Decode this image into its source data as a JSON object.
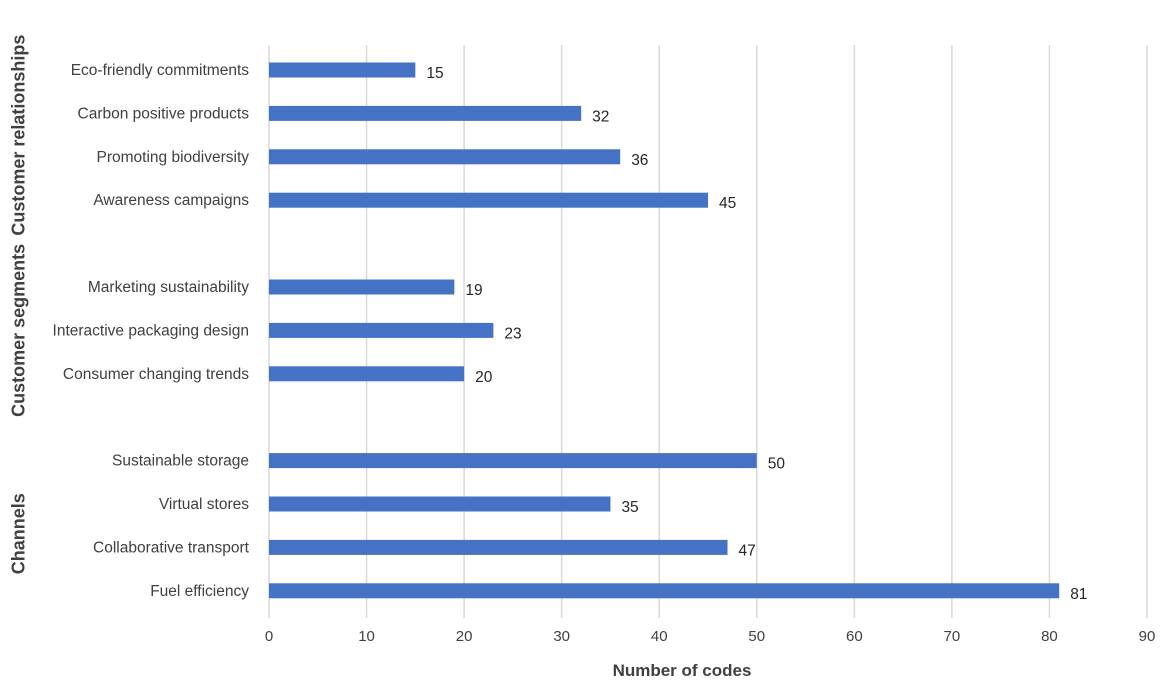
{
  "chart_data": {
    "type": "bar",
    "orientation": "horizontal",
    "xlabel": "Number of codes",
    "xlim": [
      0,
      90
    ],
    "xticks": [
      0,
      10,
      20,
      30,
      40,
      50,
      60,
      70,
      80,
      90
    ],
    "grid": true,
    "bar_color": "#4472C4",
    "groups": [
      {
        "name": "Customer relationships",
        "categories": [
          "Eco-friendly commitments",
          "Carbon positive products",
          "Promoting biodiversity",
          "Awareness campaigns"
        ],
        "values": [
          15,
          32,
          36,
          45
        ]
      },
      {
        "name": "Customer segments",
        "categories": [
          "Marketing sustainability",
          "Interactive packaging design",
          "Consumer changing trends"
        ],
        "values": [
          19,
          23,
          20
        ]
      },
      {
        "name": "Channels",
        "categories": [
          "Sustainable storage",
          "Virtual stores",
          "Collaborative transport",
          "Fuel efficiency"
        ],
        "values": [
          50,
          35,
          47,
          81
        ]
      }
    ]
  }
}
